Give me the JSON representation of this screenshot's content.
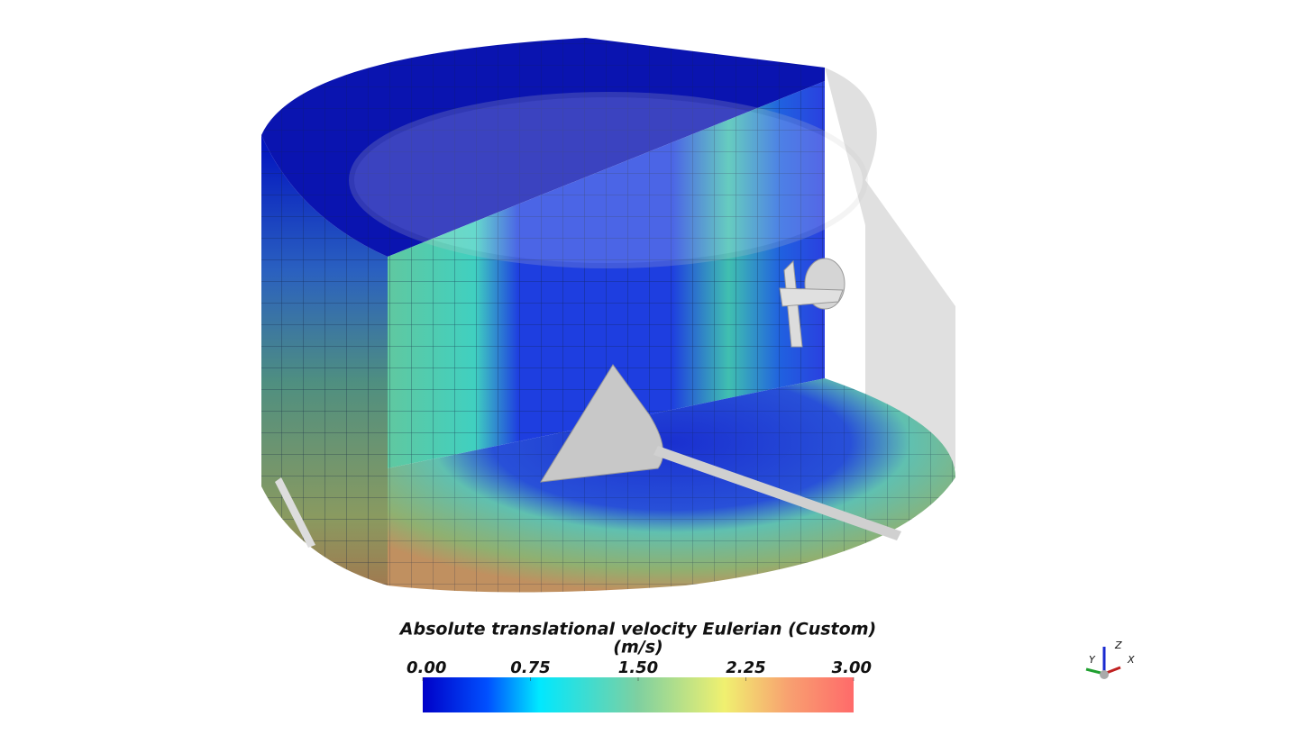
{
  "colorbar": {
    "title": "Absolute translational velocity Eulerian (Custom)",
    "unit": "(m/s)",
    "range": [
      0,
      3
    ],
    "ticks": [
      {
        "value": 0,
        "label": "0.00"
      },
      {
        "value": 0.75,
        "label": "0.75"
      },
      {
        "value": 1.5,
        "label": "1.50"
      },
      {
        "value": 2.25,
        "label": "2.25"
      },
      {
        "value": 3,
        "label": "3.00"
      }
    ]
  },
  "axes": {
    "y": "Y",
    "z": "Z",
    "x": "X"
  }
}
